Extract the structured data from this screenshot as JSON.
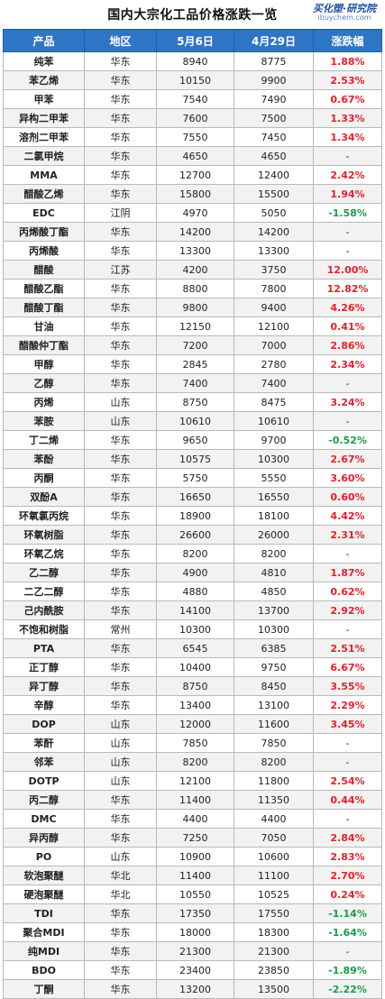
{
  "header": {
    "title": "国内大宗化工品价格涨跌一览",
    "logo_name": "买化塑·研究院",
    "logo_url": "ibuychem.com"
  },
  "table": {
    "columns": [
      "产品",
      "地区",
      "5月6日",
      "4月29日",
      "涨跌幅"
    ],
    "rows": [
      {
        "product": "纯苯",
        "region": "华东",
        "may6": "8940",
        "apr29": "8775",
        "change": "1.88%"
      },
      {
        "product": "苯乙烯",
        "region": "华东",
        "may6": "10150",
        "apr29": "9900",
        "change": "2.53%"
      },
      {
        "product": "甲苯",
        "region": "华东",
        "may6": "7540",
        "apr29": "7490",
        "change": "0.67%"
      },
      {
        "product": "异构二甲苯",
        "region": "华东",
        "may6": "7600",
        "apr29": "7500",
        "change": "1.33%"
      },
      {
        "product": "溶剂二甲苯",
        "region": "华东",
        "may6": "7550",
        "apr29": "7450",
        "change": "1.34%"
      },
      {
        "product": "二氯甲烷",
        "region": "华东",
        "may6": "4650",
        "apr29": "4650",
        "change": "-"
      },
      {
        "product": "MMA",
        "region": "华东",
        "may6": "12700",
        "apr29": "12400",
        "change": "2.42%"
      },
      {
        "product": "醋酸乙烯",
        "region": "华东",
        "may6": "15800",
        "apr29": "15500",
        "change": "1.94%"
      },
      {
        "product": "EDC",
        "region": "江阴",
        "may6": "4970",
        "apr29": "5050",
        "change": "-1.58%"
      },
      {
        "product": "丙烯酸丁酯",
        "region": "华东",
        "may6": "14200",
        "apr29": "14200",
        "change": "-"
      },
      {
        "product": "丙烯酸",
        "region": "华东",
        "may6": "13300",
        "apr29": "13300",
        "change": "-"
      },
      {
        "product": "醋酸",
        "region": "江苏",
        "may6": "4200",
        "apr29": "3750",
        "change": "12.00%"
      },
      {
        "product": "醋酸乙酯",
        "region": "华东",
        "may6": "8800",
        "apr29": "7800",
        "change": "12.82%"
      },
      {
        "product": "醋酸丁酯",
        "region": "华东",
        "may6": "9800",
        "apr29": "9400",
        "change": "4.26%"
      },
      {
        "product": "甘油",
        "region": "华东",
        "may6": "12150",
        "apr29": "12100",
        "change": "0.41%"
      },
      {
        "product": "醋酸仲丁酯",
        "region": "华东",
        "may6": "7200",
        "apr29": "7000",
        "change": "2.86%"
      },
      {
        "product": "甲醇",
        "region": "华东",
        "may6": "2845",
        "apr29": "2780",
        "change": "2.34%"
      },
      {
        "product": "乙醇",
        "region": "华东",
        "may6": "7400",
        "apr29": "7400",
        "change": "-"
      },
      {
        "product": "丙烯",
        "region": "山东",
        "may6": "8750",
        "apr29": "8475",
        "change": "3.24%"
      },
      {
        "product": "苯胺",
        "region": "山东",
        "may6": "10610",
        "apr29": "10610",
        "change": "-"
      },
      {
        "product": "丁二烯",
        "region": "华东",
        "may6": "9650",
        "apr29": "9700",
        "change": "-0.52%"
      },
      {
        "product": "苯酚",
        "region": "华东",
        "may6": "10575",
        "apr29": "10300",
        "change": "2.67%"
      },
      {
        "product": "丙酮",
        "region": "华东",
        "may6": "5750",
        "apr29": "5550",
        "change": "3.60%"
      },
      {
        "product": "双酚A",
        "region": "华东",
        "may6": "16650",
        "apr29": "16550",
        "change": "0.60%"
      },
      {
        "product": "环氧氯丙烷",
        "region": "华东",
        "may6": "18900",
        "apr29": "18100",
        "change": "4.42%"
      },
      {
        "product": "环氧树脂",
        "region": "华东",
        "may6": "26600",
        "apr29": "26000",
        "change": "2.31%"
      },
      {
        "product": "环氧乙烷",
        "region": "华东",
        "may6": "8200",
        "apr29": "8200",
        "change": "-"
      },
      {
        "product": "乙二醇",
        "region": "华东",
        "may6": "4900",
        "apr29": "4810",
        "change": "1.87%"
      },
      {
        "product": "二乙二醇",
        "region": "华东",
        "may6": "4880",
        "apr29": "4850",
        "change": "0.62%"
      },
      {
        "product": "己内酰胺",
        "region": "华东",
        "may6": "14100",
        "apr29": "13700",
        "change": "2.92%"
      },
      {
        "product": "不饱和树脂",
        "region": "常州",
        "may6": "10300",
        "apr29": "10300",
        "change": "-"
      },
      {
        "product": "PTA",
        "region": "华东",
        "may6": "6545",
        "apr29": "6385",
        "change": "2.51%"
      },
      {
        "product": "正丁醇",
        "region": "华东",
        "may6": "10400",
        "apr29": "9750",
        "change": "6.67%"
      },
      {
        "product": "异丁醇",
        "region": "华东",
        "may6": "8750",
        "apr29": "8450",
        "change": "3.55%"
      },
      {
        "product": "辛醇",
        "region": "华东",
        "may6": "13400",
        "apr29": "13100",
        "change": "2.29%"
      },
      {
        "product": "DOP",
        "region": "山东",
        "may6": "12000",
        "apr29": "11600",
        "change": "3.45%"
      },
      {
        "product": "苯酐",
        "region": "山东",
        "may6": "7850",
        "apr29": "7850",
        "change": "-"
      },
      {
        "product": "邻苯",
        "region": "山东",
        "may6": "8200",
        "apr29": "8200",
        "change": "-"
      },
      {
        "product": "DOTP",
        "region": "山东",
        "may6": "12100",
        "apr29": "11800",
        "change": "2.54%"
      },
      {
        "product": "丙二醇",
        "region": "华东",
        "may6": "11400",
        "apr29": "11350",
        "change": "0.44%"
      },
      {
        "product": "DMC",
        "region": "华东",
        "may6": "4400",
        "apr29": "4400",
        "change": "-"
      },
      {
        "product": "异丙醇",
        "region": "华东",
        "may6": "7250",
        "apr29": "7050",
        "change": "2.84%"
      },
      {
        "product": "PO",
        "region": "山东",
        "may6": "10900",
        "apr29": "10600",
        "change": "2.83%"
      },
      {
        "product": "软泡聚醚",
        "region": "华北",
        "may6": "11400",
        "apr29": "11100",
        "change": "2.70%"
      },
      {
        "product": "硬泡聚醚",
        "region": "华北",
        "may6": "10550",
        "apr29": "10525",
        "change": "0.24%"
      },
      {
        "product": "TDI",
        "region": "华东",
        "may6": "17350",
        "apr29": "17550",
        "change": "-1.14%"
      },
      {
        "product": "聚合MDI",
        "region": "华东",
        "may6": "18000",
        "apr29": "18300",
        "change": "-1.64%"
      },
      {
        "product": "纯MDI",
        "region": "华东",
        "may6": "21300",
        "apr29": "21300",
        "change": "-"
      },
      {
        "product": "BDO",
        "region": "华东",
        "may6": "23400",
        "apr29": "23850",
        "change": "-1.89%"
      },
      {
        "product": "丁酮",
        "region": "华东",
        "may6": "13200",
        "apr29": "13500",
        "change": "-2.22%"
      }
    ]
  },
  "colors": {
    "header_bg": "#2f75c6",
    "up": "#e8202a",
    "down": "#1a9e47",
    "alt_row": "#f2f2f2"
  }
}
